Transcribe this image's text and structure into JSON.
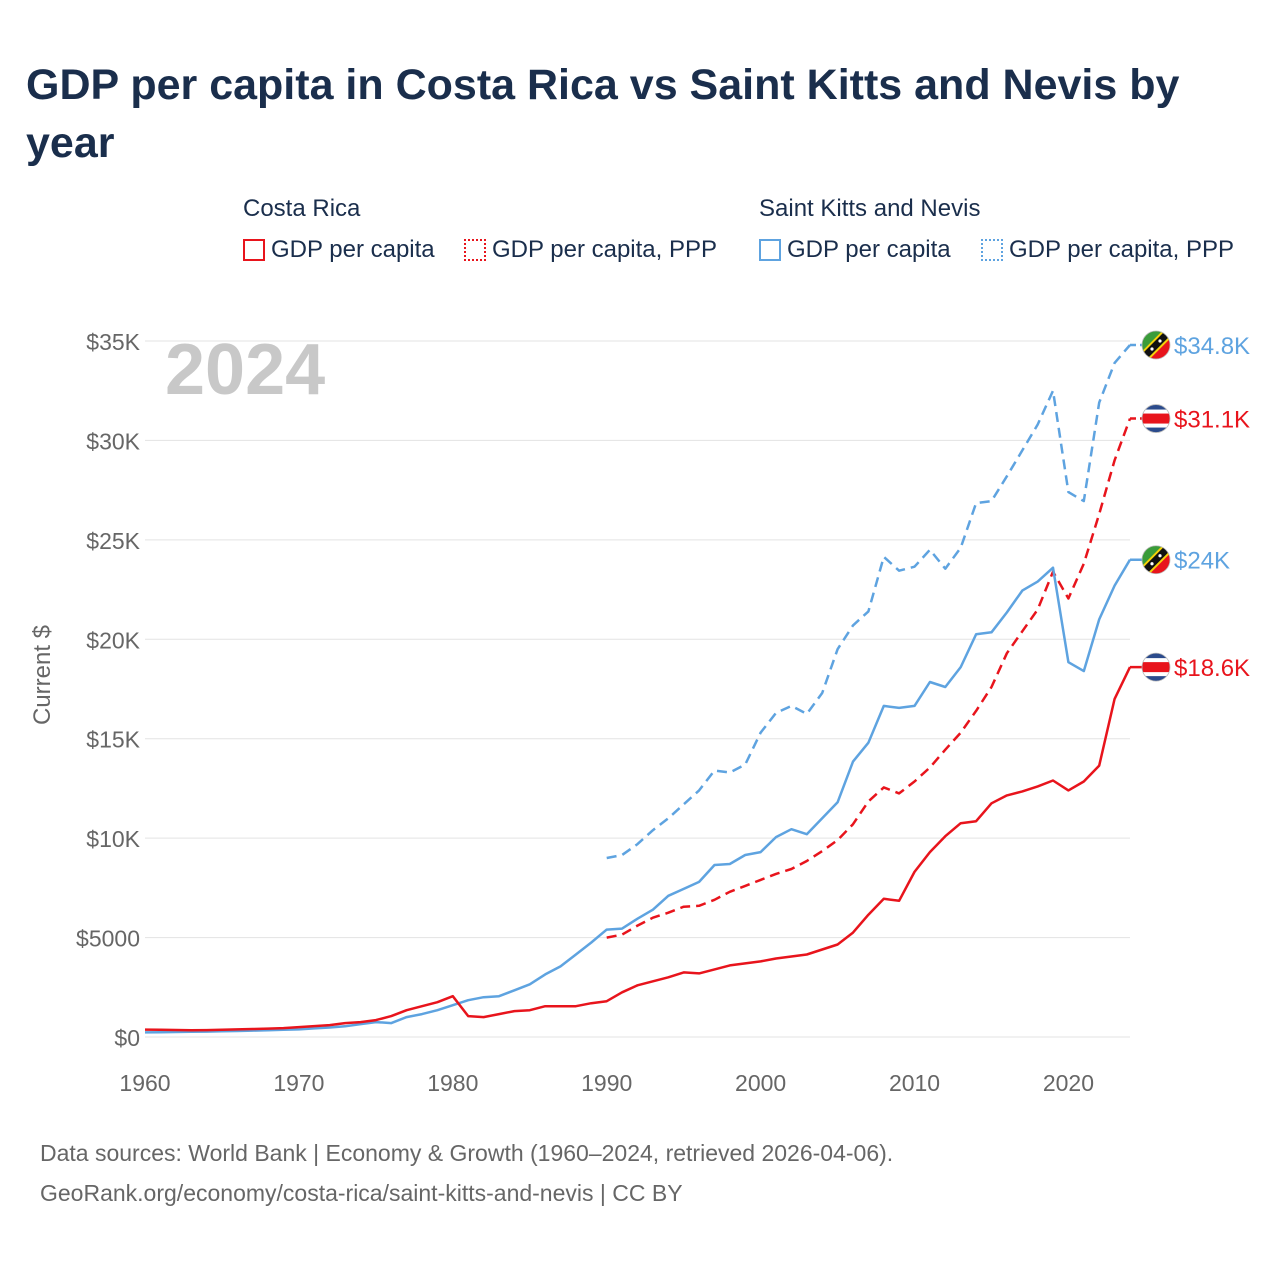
{
  "title": "GDP per capita in Costa Rica vs Saint Kitts and Nevis by year",
  "legend": {
    "group_cr": "Costa Rica",
    "group_kn": "Saint Kitts and Nevis",
    "item_gdp": "GDP per capita",
    "item_ppp": "GDP per capita, PPP"
  },
  "footer": {
    "line1": "Data sources: World Bank | Economy & Growth (1960–2024, retrieved 2026-04-06).",
    "line2": "GeoRank.org/economy/costa-rica/saint-kitts-and-nevis | CC BY"
  },
  "colors": {
    "costa_rica": "#e8141c",
    "saint_kitts": "#5ea3e0",
    "year_watermark": "#c8c8c8"
  },
  "chart_data": {
    "type": "line",
    "title": "GDP per capita in Costa Rica vs Saint Kitts and Nevis by year",
    "ylabel": "Current $",
    "xlabel": "",
    "year_label": "2024",
    "xlim": [
      1960,
      2024
    ],
    "ylim": [
      0,
      35000
    ],
    "x_ticks": [
      {
        "value": 1960,
        "label": "1960"
      },
      {
        "value": 1970,
        "label": "1970"
      },
      {
        "value": 1980,
        "label": "1980"
      },
      {
        "value": 1990,
        "label": "1990"
      },
      {
        "value": 2000,
        "label": "2000"
      },
      {
        "value": 2010,
        "label": "2010"
      },
      {
        "value": 2020,
        "label": "2020"
      }
    ],
    "y_ticks": [
      {
        "value": 0,
        "label": "$0"
      },
      {
        "value": 5000,
        "label": "$5000"
      },
      {
        "value": 10000,
        "label": "$10K"
      },
      {
        "value": 15000,
        "label": "$15K"
      },
      {
        "value": 20000,
        "label": "$20K"
      },
      {
        "value": 25000,
        "label": "$25K"
      },
      {
        "value": 30000,
        "label": "$30K"
      },
      {
        "value": 35000,
        "label": "$35K"
      }
    ],
    "series": [
      {
        "name": "Saint Kitts and Nevis GDP per capita, PPP",
        "country": "Saint Kitts and Nevis",
        "style": "dashed",
        "color": "#5ea3e0",
        "end_label": "$34.8K",
        "flag": "kn",
        "x": [
          1990,
          1991,
          1992,
          1993,
          1994,
          1995,
          1996,
          1997,
          1998,
          1999,
          2000,
          2001,
          2002,
          2003,
          2004,
          2005,
          2006,
          2007,
          2008,
          2009,
          2010,
          2011,
          2012,
          2013,
          2014,
          2015,
          2016,
          2017,
          2018,
          2019,
          2020,
          2021,
          2022,
          2023,
          2024
        ],
        "values": [
          9000,
          9150,
          9700,
          10400,
          11000,
          11700,
          12400,
          13400,
          13300,
          13700,
          15300,
          16300,
          16650,
          16250,
          17300,
          19500,
          20700,
          21400,
          24150,
          23450,
          23650,
          24500,
          23550,
          24600,
          26850,
          26950,
          28200,
          29500,
          30800,
          32500,
          27400,
          26950,
          31900,
          33900,
          34800
        ]
      },
      {
        "name": "Costa Rica GDP per capita, PPP",
        "country": "Costa Rica",
        "style": "dashed",
        "color": "#e8141c",
        "end_label": "$31.1K",
        "flag": "cr",
        "x": [
          1990,
          1991,
          1992,
          1993,
          1994,
          1995,
          1996,
          1997,
          1998,
          1999,
          2000,
          2001,
          2002,
          2003,
          2004,
          2005,
          2006,
          2007,
          2008,
          2009,
          2010,
          2011,
          2012,
          2013,
          2014,
          2015,
          2016,
          2017,
          2018,
          2019,
          2020,
          2021,
          2022,
          2023,
          2024
        ],
        "values": [
          5000,
          5150,
          5600,
          6000,
          6250,
          6550,
          6600,
          6900,
          7300,
          7600,
          7900,
          8200,
          8450,
          8850,
          9350,
          9900,
          10700,
          11850,
          12550,
          12250,
          12850,
          13550,
          14450,
          15300,
          16400,
          17600,
          19300,
          20400,
          21500,
          23400,
          22050,
          23800,
          26300,
          29000,
          31100
        ]
      },
      {
        "name": "Saint Kitts and Nevis GDP per capita",
        "country": "Saint Kitts and Nevis",
        "style": "solid",
        "color": "#5ea3e0",
        "end_label": "$24K",
        "flag": "kn",
        "x": [
          1960,
          1961,
          1962,
          1963,
          1964,
          1965,
          1966,
          1967,
          1968,
          1969,
          1970,
          1971,
          1972,
          1973,
          1974,
          1975,
          1976,
          1977,
          1978,
          1979,
          1980,
          1981,
          1982,
          1983,
          1984,
          1985,
          1986,
          1987,
          1988,
          1989,
          1990,
          1991,
          1992,
          1993,
          1994,
          1995,
          1996,
          1997,
          1998,
          1999,
          2000,
          2001,
          2002,
          2003,
          2004,
          2005,
          2006,
          2007,
          2008,
          2009,
          2010,
          2011,
          2012,
          2013,
          2014,
          2015,
          2016,
          2017,
          2018,
          2019,
          2020,
          2021,
          2022,
          2023,
          2024
        ],
        "values": [
          230,
          240,
          250,
          260,
          270,
          285,
          300,
          320,
          340,
          360,
          380,
          430,
          480,
          540,
          650,
          750,
          700,
          1000,
          1150,
          1350,
          1600,
          1850,
          2000,
          2050,
          2350,
          2650,
          3150,
          3550,
          4150,
          4750,
          5400,
          5450,
          5950,
          6400,
          7100,
          7450,
          7800,
          8650,
          8700,
          9150,
          9300,
          10050,
          10450,
          10200,
          11000,
          11800,
          13850,
          14800,
          16650,
          16550,
          16650,
          17850,
          17600,
          18600,
          20250,
          20350,
          21350,
          22450,
          22900,
          23600,
          18850,
          18400,
          21000,
          22700,
          24000
        ]
      },
      {
        "name": "Costa Rica GDP per capita",
        "country": "Costa Rica",
        "style": "solid",
        "color": "#e8141c",
        "end_label": "$18.6K",
        "flag": "cr",
        "x": [
          1960,
          1961,
          1962,
          1963,
          1964,
          1965,
          1966,
          1967,
          1968,
          1969,
          1970,
          1971,
          1972,
          1973,
          1974,
          1975,
          1976,
          1977,
          1978,
          1979,
          1980,
          1981,
          1982,
          1983,
          1984,
          1985,
          1986,
          1987,
          1988,
          1989,
          1990,
          1991,
          1992,
          1993,
          1994,
          1995,
          1996,
          1997,
          1998,
          1999,
          2000,
          2001,
          2002,
          2003,
          2004,
          2005,
          2006,
          2007,
          2008,
          2009,
          2010,
          2011,
          2012,
          2013,
          2014,
          2015,
          2016,
          2017,
          2018,
          2019,
          2020,
          2021,
          2022,
          2023,
          2024
        ],
        "values": [
          370,
          360,
          350,
          340,
          345,
          360,
          380,
          400,
          420,
          450,
          500,
          550,
          600,
          700,
          750,
          850,
          1050,
          1350,
          1550,
          1750,
          2050,
          1050,
          1000,
          1150,
          1300,
          1350,
          1550,
          1550,
          1550,
          1700,
          1800,
          2250,
          2600,
          2800,
          3000,
          3250,
          3200,
          3400,
          3600,
          3700,
          3800,
          3950,
          4050,
          4150,
          4400,
          4650,
          5250,
          6150,
          6950,
          6850,
          8300,
          9300,
          10100,
          10750,
          10850,
          11750,
          12150,
          12350,
          12600,
          12900,
          12400,
          12850,
          13650,
          17000,
          18600
        ]
      }
    ]
  }
}
